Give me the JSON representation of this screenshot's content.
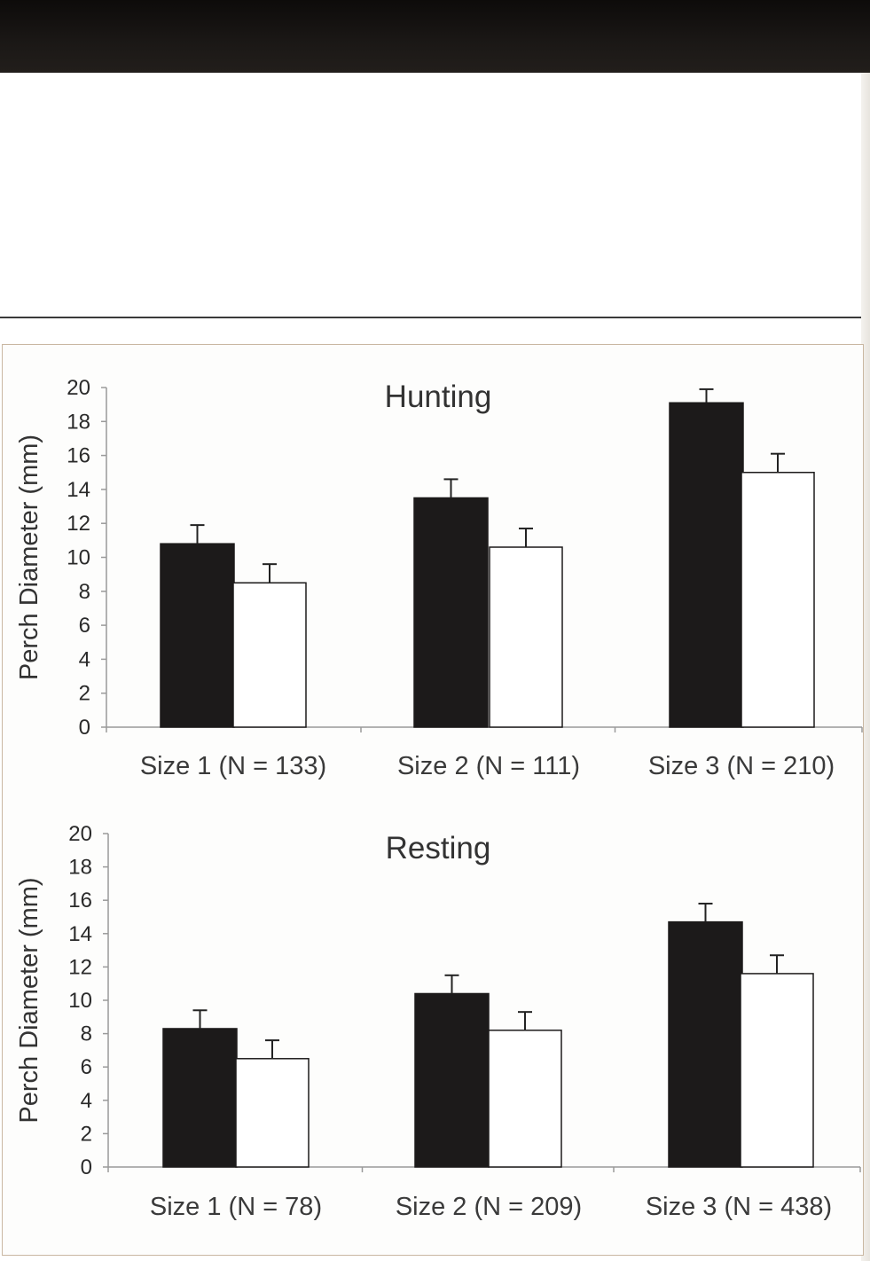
{
  "chart_data": [
    {
      "type": "bar",
      "title": "Hunting",
      "ylabel": "Perch Diameter (mm)",
      "xlabel": "",
      "ylim": [
        0,
        20
      ],
      "yticks": [
        0,
        2,
        4,
        6,
        8,
        10,
        12,
        14,
        16,
        18,
        20
      ],
      "categories": [
        "Size 1 (N = 133)",
        "Size 2 (N = 111)",
        "Size 3 (N = 210)"
      ],
      "series": [
        {
          "values": [
            10.8,
            13.5,
            19.1
          ],
          "errors": [
            1.1,
            1.1,
            0.8
          ],
          "color": "#1c1a1a"
        },
        {
          "values": [
            8.5,
            10.6,
            15.0
          ],
          "errors": [
            1.1,
            1.1,
            1.1
          ],
          "color": "#ffffff"
        }
      ]
    },
    {
      "type": "bar",
      "title": "Resting",
      "ylabel": "Perch Diameter (mm)",
      "xlabel": "",
      "ylim": [
        0,
        20
      ],
      "yticks": [
        0,
        2,
        4,
        6,
        8,
        10,
        12,
        14,
        16,
        18,
        20
      ],
      "categories": [
        "Size 1 (N = 78)",
        "Size 2 (N = 209)",
        "Size 3 (N = 438)"
      ],
      "series": [
        {
          "values": [
            8.3,
            10.4,
            14.7
          ],
          "errors": [
            1.1,
            1.1,
            1.1
          ],
          "color": "#1c1a1a"
        },
        {
          "values": [
            6.5,
            8.2,
            11.6
          ],
          "errors": [
            1.1,
            1.1,
            1.1
          ],
          "color": "#ffffff"
        }
      ]
    }
  ]
}
